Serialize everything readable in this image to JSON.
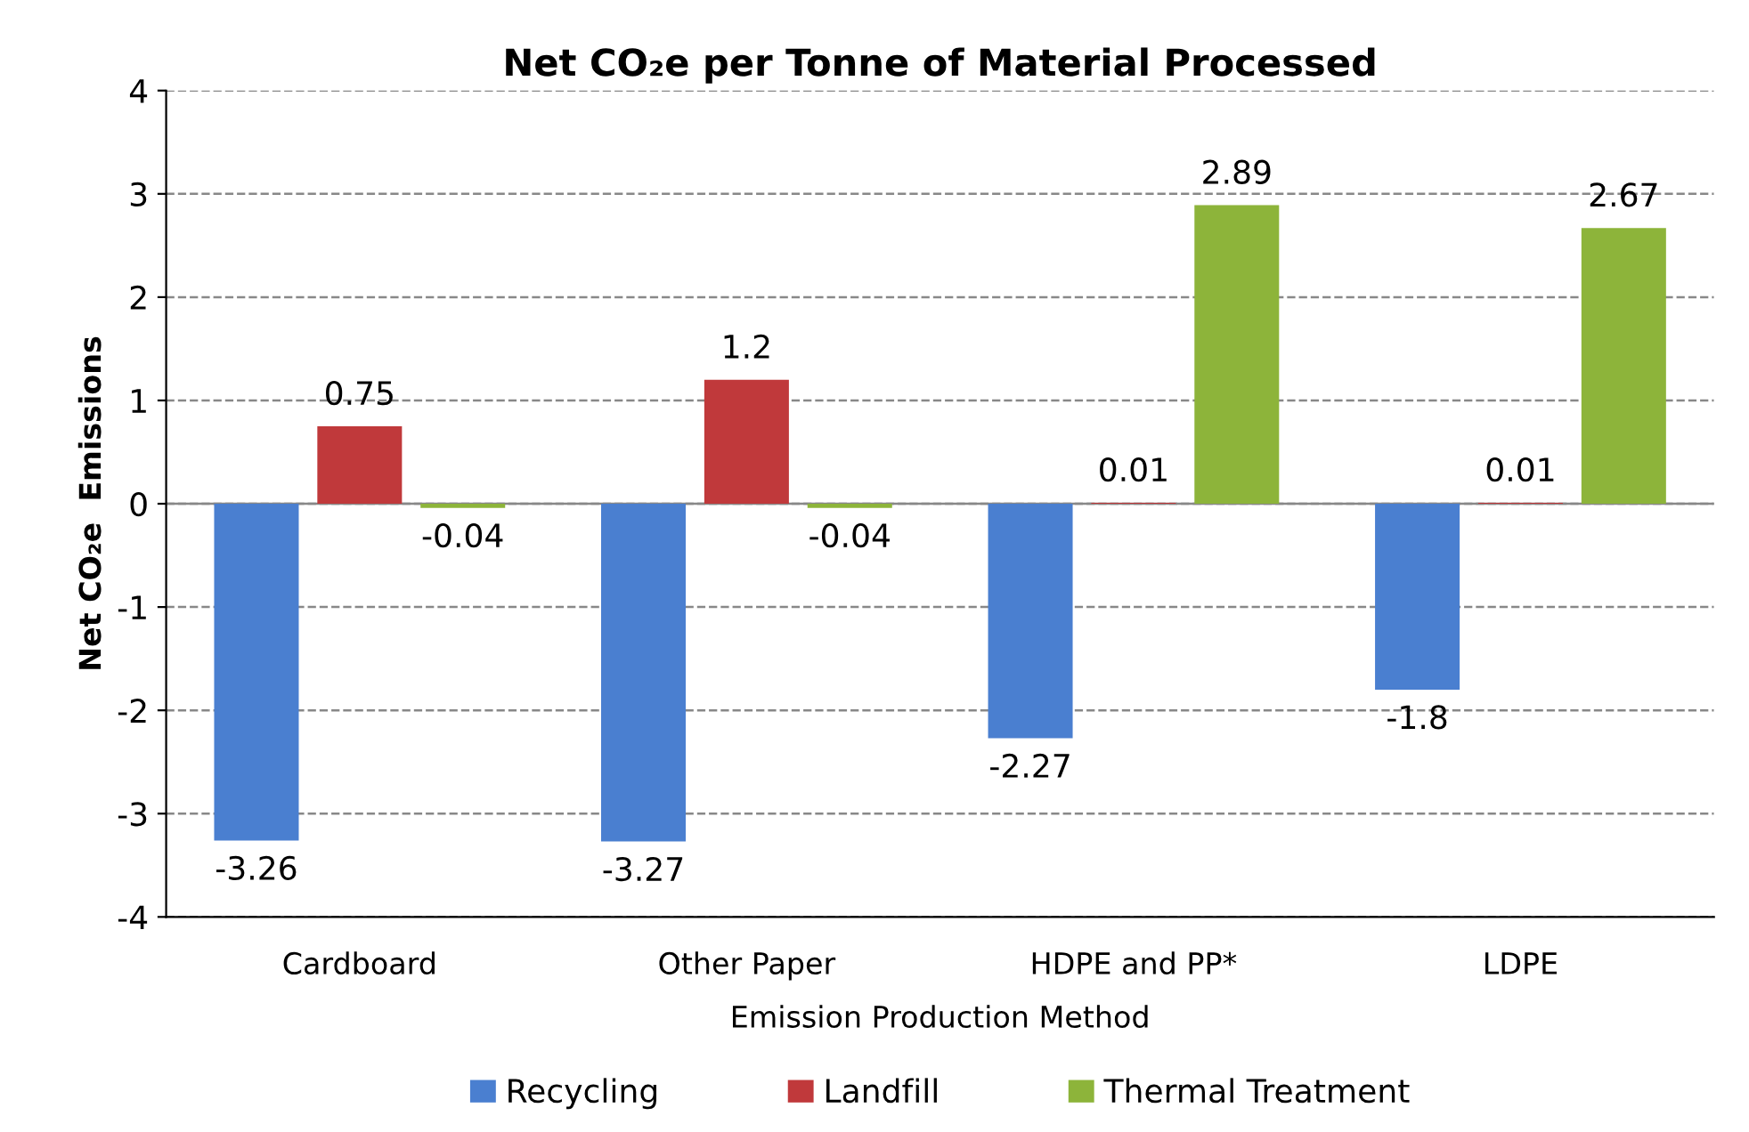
{
  "chart_data": {
    "type": "bar",
    "title": "Net CO₂e per Tonne of Material Processed",
    "xlabel": "Emission Production Method",
    "ylabel": "Net CO₂e  Emissions",
    "categories": [
      "Cardboard",
      "Other Paper",
      "HDPE and PP*",
      "LDPE"
    ],
    "series": [
      {
        "name": "Recycling",
        "color": "#4a7fd0",
        "values": [
          -3.26,
          -3.27,
          -2.27,
          -1.8
        ]
      },
      {
        "name": "Landfill",
        "color": "#c0393b",
        "values": [
          0.75,
          1.2,
          0.01,
          0.01
        ]
      },
      {
        "name": "Thermal Treatment",
        "color": "#8db43a",
        "values": [
          -0.04,
          -0.04,
          2.89,
          2.67
        ]
      }
    ],
    "ylim": [
      -4,
      4
    ],
    "yticks": [
      -4,
      -3,
      -2,
      -1,
      0,
      1,
      2,
      3,
      4
    ],
    "grid": "y",
    "legend": "bottom",
    "data_labels": true
  }
}
